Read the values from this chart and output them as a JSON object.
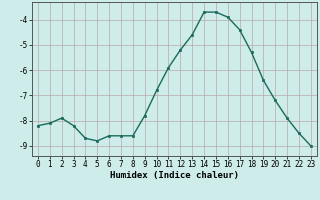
{
  "x": [
    0,
    1,
    2,
    3,
    4,
    5,
    6,
    7,
    8,
    9,
    10,
    11,
    12,
    13,
    14,
    15,
    16,
    17,
    18,
    19,
    20,
    21,
    22,
    23
  ],
  "y": [
    -8.2,
    -8.1,
    -7.9,
    -8.2,
    -8.7,
    -8.8,
    -8.6,
    -8.6,
    -8.6,
    -7.8,
    -6.8,
    -5.9,
    -5.2,
    -4.6,
    -3.7,
    -3.7,
    -3.9,
    -4.4,
    -5.3,
    -6.4,
    -7.2,
    -7.9,
    -8.5,
    -9.0
  ],
  "line_color": "#1a6b5a",
  "marker": "s",
  "markersize": 2.0,
  "linewidth": 1.0,
  "xlabel": "Humidex (Indice chaleur)",
  "xlabel_fontsize": 6.5,
  "xlim": [
    -0.5,
    23.5
  ],
  "ylim": [
    -9.4,
    -3.3
  ],
  "yticks": [
    -9,
    -8,
    -7,
    -6,
    -5,
    -4
  ],
  "xticks": [
    0,
    1,
    2,
    3,
    4,
    5,
    6,
    7,
    8,
    9,
    10,
    11,
    12,
    13,
    14,
    15,
    16,
    17,
    18,
    19,
    20,
    21,
    22,
    23
  ],
  "bg_color": "#cdecea",
  "grid_color": "#b8a8a8",
  "tick_fontsize": 5.5,
  "title": ""
}
